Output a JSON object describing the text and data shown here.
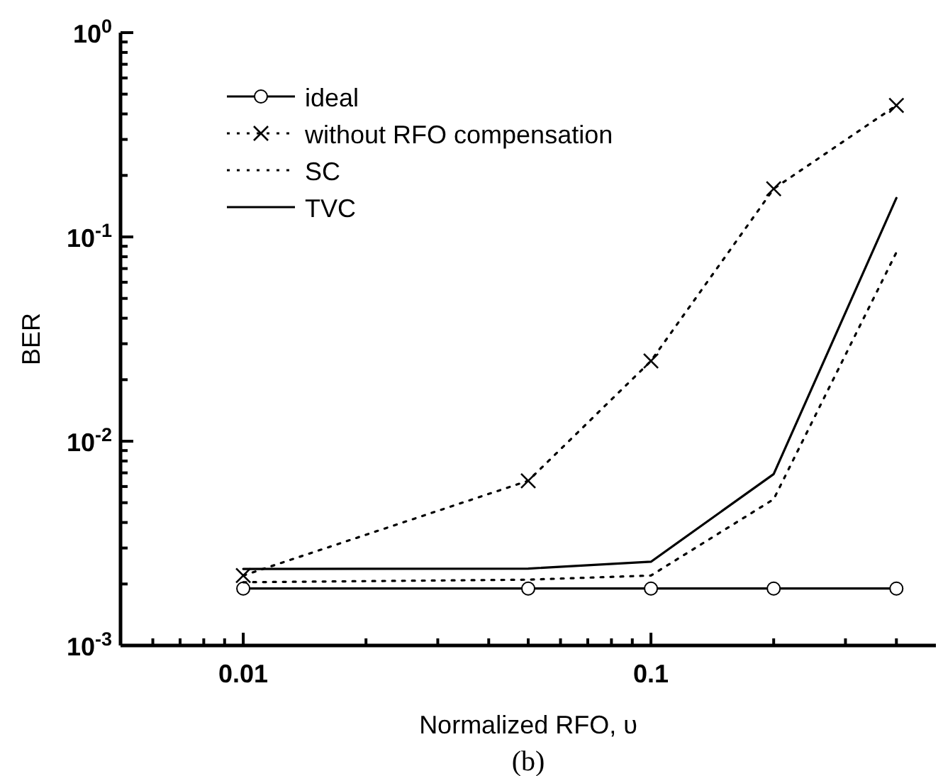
{
  "chart_data": {
    "type": "line",
    "xlabel": "Normalized RFO, υ",
    "ylabel": "BER",
    "annotations": [
      "(b)"
    ],
    "log": "xy",
    "grid": false,
    "legend": "top left",
    "xlim": [
      0.005,
      0.5
    ],
    "ylim": [
      0.001,
      1
    ],
    "xticks": [
      {
        "value": 0.006,
        "label": null
      },
      {
        "value": 0.007,
        "label": null
      },
      {
        "value": 0.008,
        "label": null
      },
      {
        "value": 0.009,
        "label": null
      },
      {
        "value": 0.01,
        "label": "0.01"
      },
      {
        "value": 0.02,
        "label": null
      },
      {
        "value": 0.03,
        "label": null
      },
      {
        "value": 0.04,
        "label": null
      },
      {
        "value": 0.05,
        "label": null
      },
      {
        "value": 0.06,
        "label": null
      },
      {
        "value": 0.07,
        "label": null
      },
      {
        "value": 0.08,
        "label": null
      },
      {
        "value": 0.09,
        "label": null
      },
      {
        "value": 0.1,
        "label": "0.1"
      },
      {
        "value": 0.2,
        "label": null
      },
      {
        "value": 0.3,
        "label": null
      },
      {
        "value": 0.4,
        "label": null
      }
    ],
    "yticks": [
      {
        "value": 0.001,
        "label": "10$^{-3}$"
      },
      {
        "value": 0.002,
        "label": null
      },
      {
        "value": 0.003,
        "label": null
      },
      {
        "value": 0.004,
        "label": null
      },
      {
        "value": 0.005,
        "label": null
      },
      {
        "value": 0.006,
        "label": null
      },
      {
        "value": 0.007,
        "label": null
      },
      {
        "value": 0.008,
        "label": null
      },
      {
        "value": 0.009,
        "label": null
      },
      {
        "value": 0.01,
        "label": "10$^{-2}$"
      },
      {
        "value": 0.02,
        "label": null
      },
      {
        "value": 0.03,
        "label": null
      },
      {
        "value": 0.04,
        "label": null
      },
      {
        "value": 0.05,
        "label": null
      },
      {
        "value": 0.06,
        "label": null
      },
      {
        "value": 0.07,
        "label": null
      },
      {
        "value": 0.08,
        "label": null
      },
      {
        "value": 0.09,
        "label": null
      },
      {
        "value": 0.1,
        "label": "10$^{-1}$"
      },
      {
        "value": 0.2,
        "label": null
      },
      {
        "value": 0.3,
        "label": null
      },
      {
        "value": 0.4,
        "label": null
      },
      {
        "value": 0.5,
        "label": null
      },
      {
        "value": 0.6,
        "label": null
      },
      {
        "value": 0.7,
        "label": null
      },
      {
        "value": 0.8,
        "label": null
      },
      {
        "value": 0.9,
        "label": null
      },
      {
        "value": 1,
        "label": "10$^{0}$"
      }
    ],
    "x": [
      0.01,
      0.05,
      0.1,
      0.2,
      0.4
    ],
    "series": [
      {
        "name": "ideal",
        "color": "#000000",
        "marker": "circle",
        "line_style": "solid",
        "values": [
          0.0019,
          0.0019,
          0.0019,
          0.0019,
          0.0019
        ]
      },
      {
        "name": "without RFO compensation",
        "color": "#000000",
        "marker": "cross",
        "line_style": "dotted",
        "values": [
          0.0022,
          0.0064,
          0.0247,
          0.172,
          0.44
        ]
      },
      {
        "name": "SC",
        "color": "#000000",
        "marker": "none",
        "line_style": "dotted",
        "values": [
          0.00204,
          0.0021,
          0.0022,
          0.0052,
          0.084
        ]
      },
      {
        "name": "TVC",
        "color": "#000000",
        "marker": "none",
        "line_style": "solid",
        "values": [
          0.00237,
          0.00238,
          0.00257,
          0.0069,
          0.155
        ]
      }
    ]
  }
}
